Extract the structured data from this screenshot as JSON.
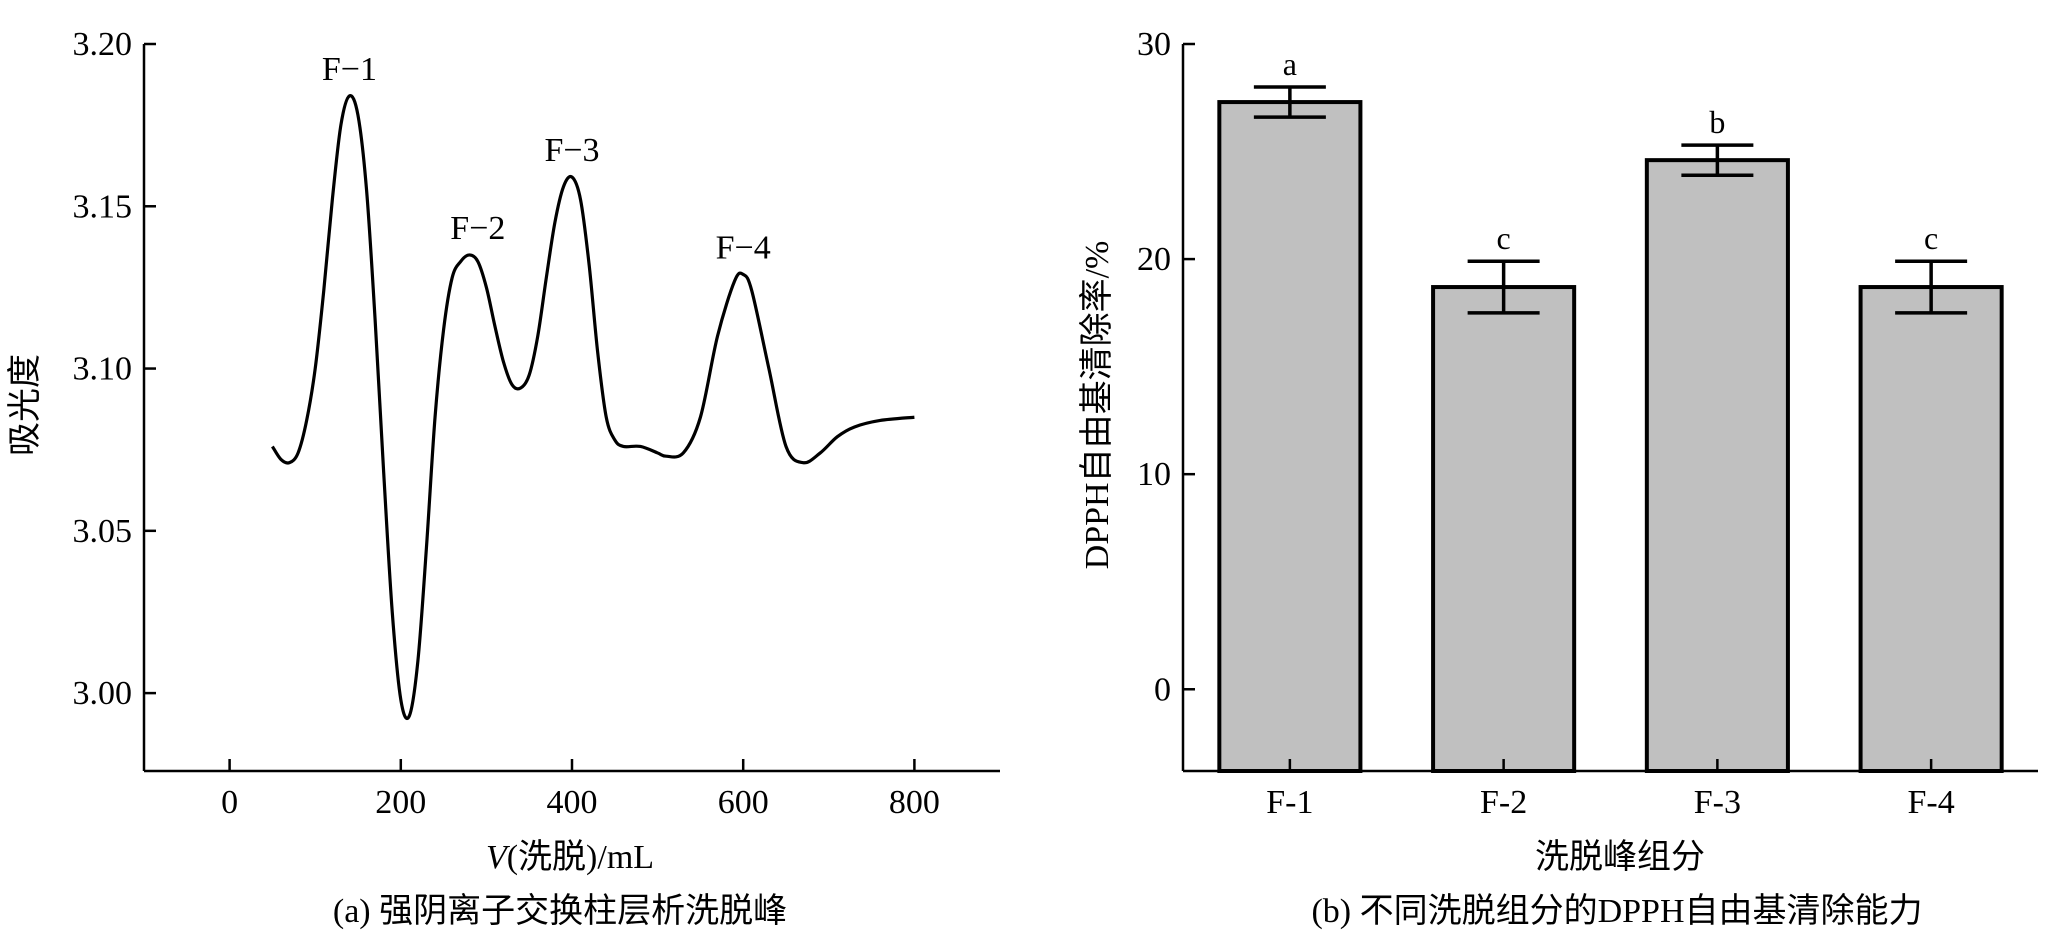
{
  "chart_data": [
    {
      "type": "line",
      "caption": "(a) 强阴离子交换柱层析洗脱峰",
      "xlabel_italic": "V",
      "xlabel_rest": "(洗脱)/mL",
      "ylabel": "吸光度",
      "xlim": [
        -100,
        900
      ],
      "ylim": [
        2.976,
        3.2
      ],
      "xticks": [
        0,
        200,
        400,
        600,
        800
      ],
      "xtick_labels": [
        "0",
        "200",
        "400",
        "600",
        "800"
      ],
      "yticks": [
        3.0,
        3.05,
        3.1,
        3.15,
        3.2
      ],
      "ytick_labels": [
        "3.00",
        "3.05",
        "3.10",
        "3.15",
        "3.20"
      ],
      "grid": false,
      "series": [
        {
          "x": [
            50,
            60,
            70,
            80,
            90,
            100,
            110,
            120,
            130,
            140,
            150,
            160,
            170,
            180,
            190,
            200,
            210,
            220,
            230,
            240,
            250,
            260,
            270,
            280,
            290,
            300,
            310,
            320,
            330,
            340,
            350,
            360,
            370,
            380,
            390,
            400,
            410,
            420,
            430,
            440,
            450,
            460,
            480,
            500,
            510,
            530,
            550,
            570,
            590,
            600,
            610,
            630,
            650,
            670,
            690,
            710,
            730,
            760,
            800
          ],
          "y": [
            3.076,
            3.072,
            3.071,
            3.074,
            3.084,
            3.1,
            3.124,
            3.152,
            3.175,
            3.184,
            3.178,
            3.155,
            3.115,
            3.068,
            3.025,
            2.998,
            2.993,
            3.01,
            3.045,
            3.085,
            3.112,
            3.128,
            3.133,
            3.135,
            3.133,
            3.125,
            3.113,
            3.102,
            3.095,
            3.094,
            3.098,
            3.11,
            3.128,
            3.145,
            3.156,
            3.159,
            3.152,
            3.132,
            3.105,
            3.085,
            3.078,
            3.076,
            3.076,
            3.074,
            3.073,
            3.074,
            3.085,
            3.11,
            3.127,
            3.129,
            3.124,
            3.1,
            3.076,
            3.071,
            3.074,
            3.079,
            3.082,
            3.084,
            3.085
          ]
        }
      ],
      "annotations": [
        {
          "text": "F−1",
          "x": 140,
          "y": 3.184
        },
        {
          "text": "F−2",
          "x": 290,
          "y": 3.135
        },
        {
          "text": "F−3",
          "x": 400,
          "y": 3.159
        },
        {
          "text": "F−4",
          "x": 600,
          "y": 3.129
        }
      ]
    },
    {
      "type": "bar",
      "caption": "(b) 不同洗脱组分的DPPH自由基清除能力",
      "xlabel": "洗脱峰组分",
      "ylabel": "DPPH自由基清除率/%",
      "categories": [
        "F-1",
        "F-2",
        "F-3",
        "F-4"
      ],
      "values": [
        27.3,
        18.7,
        24.6,
        18.7
      ],
      "errors": [
        0.7,
        1.2,
        0.7,
        1.2
      ],
      "significance": [
        "a",
        "c",
        "b",
        "c"
      ],
      "ylim": [
        -3.8,
        30
      ],
      "yticks": [
        0,
        10,
        20,
        30
      ],
      "ytick_labels": [
        "0",
        "10",
        "20",
        "30"
      ],
      "bar_color": "#c0c0c0",
      "grid": false
    }
  ]
}
